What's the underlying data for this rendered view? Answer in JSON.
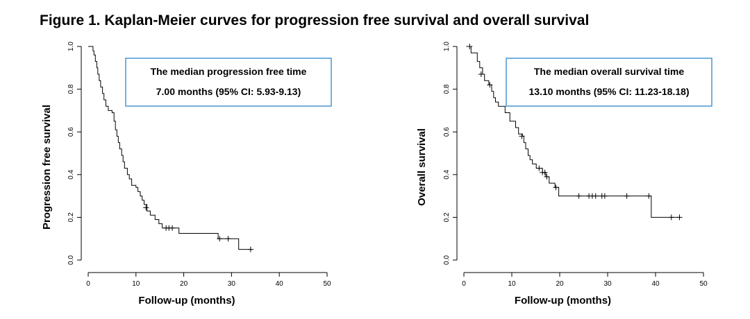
{
  "figure": {
    "title": "Figure 1. Kaplan-Meier curves for progression free survival and overall survival"
  },
  "chart_data": [
    {
      "type": "line",
      "step": true,
      "xlabel": "Follow-up (months)",
      "ylabel": "Progression free survival",
      "xlim": [
        0,
        50
      ],
      "ylim": [
        0,
        1
      ],
      "xticks": [
        0,
        10,
        20,
        30,
        40,
        50
      ],
      "yticks": [
        0.0,
        0.2,
        0.4,
        0.6,
        0.8,
        1.0
      ],
      "ytick_labels": [
        "0.0",
        "0.2",
        "0.4",
        "0.6",
        "0.8",
        "1.0"
      ],
      "annotation": [
        "The median progression free time",
        "7.00 months (95% CI: 5.93-9.13)"
      ],
      "series": [
        {
          "points": [
            [
              0,
              1.0
            ],
            [
              1.0,
              0.98
            ],
            [
              1.2,
              0.96
            ],
            [
              1.5,
              0.93
            ],
            [
              1.8,
              0.9
            ],
            [
              2.0,
              0.87
            ],
            [
              2.3,
              0.84
            ],
            [
              2.6,
              0.81
            ],
            [
              3.0,
              0.78
            ],
            [
              3.3,
              0.75
            ],
            [
              3.7,
              0.72
            ],
            [
              4.2,
              0.7
            ],
            [
              5.0,
              0.69
            ],
            [
              5.4,
              0.65
            ],
            [
              5.7,
              0.61
            ],
            [
              6.0,
              0.58
            ],
            [
              6.3,
              0.55
            ],
            [
              6.6,
              0.52
            ],
            [
              7.0,
              0.49
            ],
            [
              7.3,
              0.46
            ],
            [
              7.6,
              0.43
            ],
            [
              8.2,
              0.4
            ],
            [
              8.6,
              0.38
            ],
            [
              9.1,
              0.35
            ],
            [
              10.0,
              0.34
            ],
            [
              10.4,
              0.32
            ],
            [
              10.9,
              0.3
            ],
            [
              11.3,
              0.28
            ],
            [
              11.7,
              0.26
            ],
            [
              12.3,
              0.23
            ],
            [
              13.0,
              0.21
            ],
            [
              14.0,
              0.19
            ],
            [
              14.8,
              0.17
            ],
            [
              15.5,
              0.15
            ],
            [
              19.0,
              0.125
            ],
            [
              27.2,
              0.1
            ],
            [
              31.5,
              0.05
            ],
            [
              34.2,
              0.05
            ]
          ],
          "censored": [
            [
              12.1,
              0.245
            ],
            [
              16.3,
              0.15
            ],
            [
              16.9,
              0.15
            ],
            [
              17.6,
              0.15
            ],
            [
              27.5,
              0.1
            ],
            [
              29.3,
              0.1
            ],
            [
              34.0,
              0.05
            ]
          ]
        }
      ]
    },
    {
      "type": "line",
      "step": true,
      "xlabel": "Follow-up (months)",
      "ylabel": "Overall survival",
      "xlim": [
        0,
        50
      ],
      "ylim": [
        0,
        1
      ],
      "xticks": [
        0,
        10,
        20,
        30,
        40,
        50
      ],
      "yticks": [
        0.0,
        0.2,
        0.4,
        0.6,
        0.8,
        1.0
      ],
      "ytick_labels": [
        "0.0",
        "0.2",
        "0.4",
        "0.6",
        "0.8",
        "1.0"
      ],
      "annotation": [
        "The median overall survival time",
        "13.10 months (95% CI: 11.23-18.18)"
      ],
      "series": [
        {
          "points": [
            [
              0.5,
              1.0
            ],
            [
              1.5,
              0.97
            ],
            [
              2.8,
              0.93
            ],
            [
              3.3,
              0.9
            ],
            [
              3.9,
              0.87
            ],
            [
              4.3,
              0.84
            ],
            [
              5.2,
              0.82
            ],
            [
              5.8,
              0.79
            ],
            [
              6.2,
              0.76
            ],
            [
              6.6,
              0.74
            ],
            [
              7.2,
              0.72
            ],
            [
              8.6,
              0.69
            ],
            [
              9.6,
              0.65
            ],
            [
              10.8,
              0.62
            ],
            [
              11.4,
              0.59
            ],
            [
              12.2,
              0.58
            ],
            [
              12.5,
              0.55
            ],
            [
              12.9,
              0.52
            ],
            [
              13.4,
              0.49
            ],
            [
              13.8,
              0.47
            ],
            [
              14.3,
              0.45
            ],
            [
              15.1,
              0.43
            ],
            [
              16.4,
              0.41
            ],
            [
              17.1,
              0.39
            ],
            [
              17.8,
              0.36
            ],
            [
              19.0,
              0.34
            ],
            [
              19.8,
              0.3
            ],
            [
              39.1,
              0.2
            ],
            [
              45.0,
              0.2
            ]
          ],
          "censored": [
            [
              1.2,
              1.0
            ],
            [
              3.6,
              0.87
            ],
            [
              5.4,
              0.82
            ],
            [
              12.1,
              0.58
            ],
            [
              15.7,
              0.43
            ],
            [
              16.4,
              0.41
            ],
            [
              16.9,
              0.41
            ],
            [
              17.3,
              0.39
            ],
            [
              19.2,
              0.34
            ],
            [
              24.0,
              0.3
            ],
            [
              26.1,
              0.3
            ],
            [
              26.8,
              0.3
            ],
            [
              27.5,
              0.3
            ],
            [
              28.8,
              0.3
            ],
            [
              29.4,
              0.3
            ],
            [
              34.0,
              0.3
            ],
            [
              38.6,
              0.3
            ],
            [
              43.3,
              0.2
            ],
            [
              45.0,
              0.2
            ]
          ]
        }
      ]
    }
  ]
}
